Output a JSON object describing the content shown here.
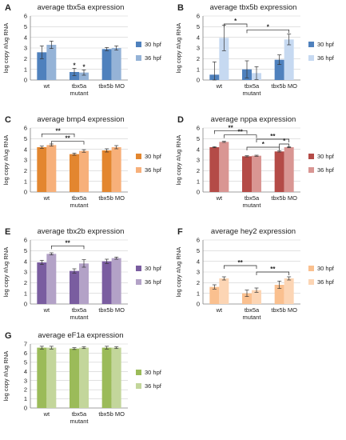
{
  "chart_data": [
    {
      "panel": "A",
      "type": "bar",
      "title": "average tbx5a expression",
      "ylabel": "log copy #/ug RNA",
      "ylim": [
        0,
        6
      ],
      "yticks": [
        0,
        1,
        2,
        3,
        4,
        5,
        6
      ],
      "categories": [
        "wt",
        "tbx5a mutant",
        "tbx5b MO"
      ],
      "series": [
        {
          "name": "30 hpf",
          "color": "#4f81bd",
          "values": [
            2.6,
            0.75,
            2.9
          ],
          "errors": [
            0.6,
            0.35,
            0.15
          ]
        },
        {
          "name": "36 hpf",
          "color": "#95b3d7",
          "values": [
            3.3,
            0.7,
            3.0
          ],
          "errors": [
            0.35,
            0.25,
            0.2
          ]
        }
      ],
      "annotations": [
        {
          "label": "*",
          "at": "bar",
          "category": 1,
          "series": 0
        },
        {
          "label": "*",
          "at": "bar",
          "category": 1,
          "series": 1
        }
      ]
    },
    {
      "panel": "B",
      "type": "bar",
      "title": "average tbx5b expression",
      "ylabel": "log copy #/ug RNA",
      "ylim": [
        0,
        6
      ],
      "yticks": [
        0,
        1,
        2,
        3,
        4,
        5,
        6
      ],
      "categories": [
        "wt",
        "tbx5a mutant",
        "tbx5b MO"
      ],
      "series": [
        {
          "name": "30 hpf",
          "color": "#4f81bd",
          "values": [
            0.5,
            1.0,
            1.9
          ],
          "errors": [
            1.2,
            0.8,
            0.45
          ]
        },
        {
          "name": "36 hpf",
          "color": "#c6d9f1",
          "values": [
            3.95,
            0.65,
            3.8
          ],
          "errors": [
            1.2,
            0.6,
            0.5
          ]
        }
      ],
      "annotations": [
        {
          "label": "*",
          "from": [
            0,
            1
          ],
          "to": [
            1,
            0
          ],
          "y": 5.25
        },
        {
          "label": "*",
          "from": [
            1,
            0
          ],
          "to": [
            2,
            1
          ],
          "y": 4.7
        }
      ]
    },
    {
      "panel": "C",
      "type": "bar",
      "title": "average bmp4 expression",
      "ylabel": "log copy #/ug RNA",
      "ylim": [
        0,
        6
      ],
      "yticks": [
        0,
        1,
        2,
        3,
        4,
        5,
        6
      ],
      "categories": [
        "wt",
        "tbx5a mutant",
        "tbx5b MO"
      ],
      "series": [
        {
          "name": "30 hpf",
          "color": "#e3862f",
          "values": [
            4.2,
            3.55,
            3.9
          ],
          "errors": [
            0.1,
            0.1,
            0.15
          ]
        },
        {
          "name": "36 hpf",
          "color": "#f7b07a",
          "values": [
            4.4,
            3.85,
            4.2
          ],
          "errors": [
            0.1,
            0.12,
            0.15
          ]
        }
      ],
      "annotations": [
        {
          "label": "**",
          "from": [
            0,
            0
          ],
          "to": [
            1,
            0
          ],
          "y": 5.45
        },
        {
          "label": "**",
          "from": [
            0,
            1
          ],
          "to": [
            1,
            1
          ],
          "y": 4.75
        }
      ]
    },
    {
      "panel": "D",
      "type": "bar",
      "title": "average nppa expression",
      "ylabel": "log copy #/ug RNA",
      "ylim": [
        0,
        6
      ],
      "yticks": [
        0,
        1,
        2,
        3,
        4,
        5,
        6
      ],
      "categories": [
        "wt",
        "tbx5a mutant",
        "tbx5b MO"
      ],
      "series": [
        {
          "name": "30 hpf",
          "color": "#b44b47",
          "values": [
            4.2,
            3.35,
            3.8
          ],
          "errors": [
            0.05,
            0.05,
            0.05
          ]
        },
        {
          "name": "36 hpf",
          "color": "#d99693",
          "values": [
            4.7,
            3.4,
            4.2
          ],
          "errors": [
            0.05,
            0.05,
            0.05
          ]
        }
      ],
      "annotations": [
        {
          "label": "**",
          "from": [
            0,
            0
          ],
          "to": [
            1,
            0
          ],
          "y": 5.75
        },
        {
          "label": "**",
          "from": [
            0,
            1
          ],
          "to": [
            1,
            1
          ],
          "y": 5.35
        },
        {
          "label": "**",
          "from": [
            1,
            1
          ],
          "to": [
            2,
            1
          ],
          "y": 4.95
        },
        {
          "label": "*",
          "from": [
            1,
            0
          ],
          "to": [
            2,
            0
          ],
          "y": 4.2
        },
        {
          "label": "*",
          "from": [
            2,
            0
          ],
          "to": [
            2,
            1
          ],
          "y": 4.5
        }
      ]
    },
    {
      "panel": "E",
      "type": "bar",
      "title": "average tbx2b expression",
      "ylabel": "log copy #/ug RNA",
      "ylim": [
        0,
        6
      ],
      "yticks": [
        0,
        1,
        2,
        3,
        4,
        5,
        6
      ],
      "categories": [
        "wt",
        "tbx5a mutant",
        "tbx5b MO"
      ],
      "series": [
        {
          "name": "30 hpf",
          "color": "#7a5da0",
          "values": [
            3.9,
            3.1,
            4.0
          ],
          "errors": [
            0.2,
            0.2,
            0.2
          ]
        },
        {
          "name": "36 hpf",
          "color": "#b3a2c7",
          "values": [
            4.7,
            3.8,
            4.3
          ],
          "errors": [
            0.1,
            0.35,
            0.1
          ]
        }
      ],
      "annotations": [
        {
          "label": "**",
          "from": [
            0,
            1
          ],
          "to": [
            1,
            1
          ],
          "y": 5.45
        }
      ]
    },
    {
      "panel": "F",
      "type": "bar",
      "title": "average hey2 expression",
      "ylabel": "log copy #/ug RNA",
      "ylim": [
        0,
        6
      ],
      "yticks": [
        0,
        1,
        2,
        3,
        4,
        5,
        6
      ],
      "categories": [
        "wt",
        "tbx5a mutant",
        "tbx5b MO"
      ],
      "series": [
        {
          "name": "30 hpf",
          "color": "#fac08f",
          "values": [
            1.6,
            1.0,
            1.8
          ],
          "errors": [
            0.2,
            0.3,
            0.35
          ]
        },
        {
          "name": "36 hpf",
          "color": "#fcd5b4",
          "values": [
            2.4,
            1.3,
            2.4
          ],
          "errors": [
            0.15,
            0.2,
            0.15
          ]
        }
      ],
      "annotations": [
        {
          "label": "**",
          "from": [
            0,
            1
          ],
          "to": [
            1,
            1
          ],
          "y": 3.6
        },
        {
          "label": "**",
          "from": [
            1,
            1
          ],
          "to": [
            2,
            1
          ],
          "y": 3.0
        }
      ]
    },
    {
      "panel": "G",
      "type": "bar",
      "title": "average eF1a expression",
      "ylabel": "log copy #/ug RNA",
      "ylim": [
        0,
        7
      ],
      "yticks": [
        0,
        1,
        2,
        3,
        4,
        5,
        6,
        7
      ],
      "categories": [
        "wt",
        "tbx5a mutant",
        "tbx5b MO"
      ],
      "series": [
        {
          "name": "30 hpf",
          "color": "#9bbb59",
          "values": [
            6.6,
            6.5,
            6.6
          ],
          "errors": [
            0.15,
            0.1,
            0.15
          ]
        },
        {
          "name": "36 hpf",
          "color": "#c3d69b",
          "values": [
            6.6,
            6.6,
            6.6
          ],
          "errors": [
            0.15,
            0.1,
            0.1
          ]
        }
      ],
      "annotations": []
    }
  ]
}
